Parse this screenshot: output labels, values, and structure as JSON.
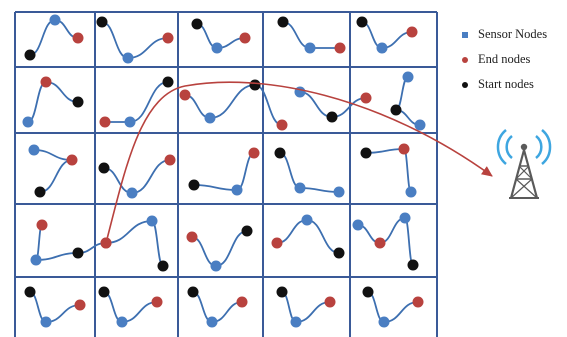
{
  "legend": [
    {
      "label": "Sensor Nodes",
      "color": "#4a7ec2",
      "shape": "square"
    },
    {
      "label": "End nodes",
      "color": "#b8423e",
      "shape": "circle"
    },
    {
      "label": "Start nodes",
      "color": "#111111",
      "shape": "circle"
    }
  ],
  "colors": {
    "grid": "#3a5a98",
    "path": "#3d6fb0",
    "sensor": "#4a7ec2",
    "end": "#b8423e",
    "start": "#111111",
    "route": "#b8423e",
    "tower_signal": "#3ea6e0",
    "tower_body": "#5a5a5a"
  },
  "grid": {
    "rows": 5,
    "cols": 5
  },
  "icons": {
    "base_station": "cell-tower-icon"
  }
}
